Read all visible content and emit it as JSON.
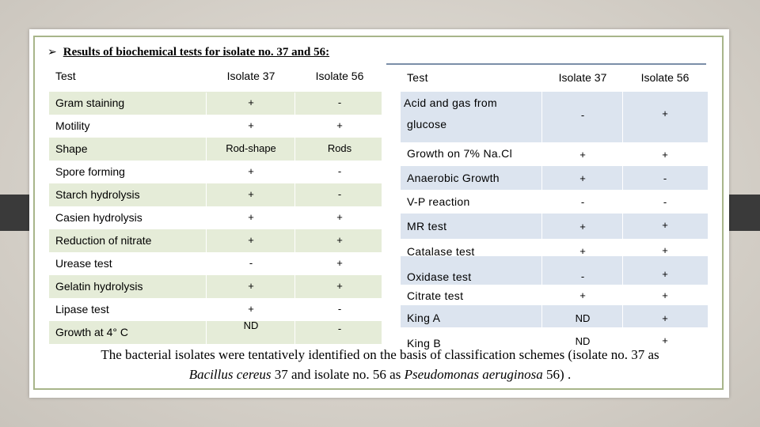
{
  "heading": {
    "bullet": "➢",
    "text": "Results of biochemical tests for isolate no. 37 and 56:"
  },
  "left_table": {
    "headers": [
      "Test",
      "Isolate 37",
      "Isolate 56"
    ],
    "rows": [
      [
        "Gram staining",
        "+",
        "-"
      ],
      [
        "Motility",
        "+",
        "+"
      ],
      [
        "Shape",
        "Rod-shape",
        "Rods"
      ],
      [
        "Spore forming",
        "+",
        "-"
      ],
      [
        "Starch hydrolysis",
        "+",
        "-"
      ],
      [
        "Casien hydrolysis",
        "+",
        "+"
      ],
      [
        "Reduction of nitrate",
        "+",
        "+"
      ],
      [
        "Urease test",
        "-",
        "+"
      ],
      [
        "Gelatin hydrolysis",
        "+",
        "+"
      ],
      [
        "Lipase test",
        "+",
        "-"
      ],
      [
        "Growth at 4° C",
        "ND",
        "-"
      ]
    ]
  },
  "right_table": {
    "headers": [
      "Test",
      "Isolate 37",
      "Isolate 56"
    ],
    "first_row": {
      "line1": "Acid and gas from",
      "line2": "glucose",
      "v37": "-",
      "v56": "+"
    },
    "rows": [
      [
        "Growth on 7% Na.Cl",
        "+",
        "+"
      ],
      [
        "Anaerobic Growth",
        "+",
        "-"
      ],
      [
        "V-P reaction",
        "-",
        "-"
      ],
      [
        "MR test",
        "+",
        "+"
      ],
      [
        "Catalase test",
        "+",
        "+"
      ],
      [
        "Oxidase test",
        "-",
        "+"
      ],
      [
        "Citrate test",
        "+",
        "+"
      ],
      [
        "King A",
        "ND",
        "+"
      ],
      [
        "King B",
        "ND",
        "+"
      ]
    ]
  },
  "caption": {
    "part1": "The bacterial isolates were tentatively identified on the basis of classification schemes (isolate no. 37 as",
    "species1": "Bacillus cereus",
    "part2": " 37 and isolate no. 56 as ",
    "species2": "Pseudomonas aeruginosa",
    "part3": " 56) ."
  }
}
